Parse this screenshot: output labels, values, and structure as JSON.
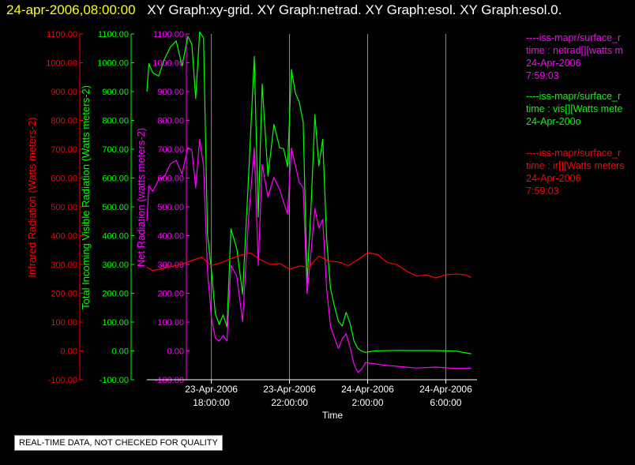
{
  "header": {
    "timestamp": "24-apr-2006,08:00:00",
    "titles": "XY Graph:xy-grid.  XY Graph:netrad.  XY Graph:esol.  XY Graph:esol.0."
  },
  "legend": [
    {
      "color": "#ff00ff",
      "lines": [
        "----iss-mapr/surface_r",
        "time : netrad[][watts m",
        "24-Apr-2006",
        "7:59:03"
      ]
    },
    {
      "color": "#00ff00",
      "lines": [
        "----iss-mapr/surface_r",
        "time : vis[][Watts mete",
        "24-Apr-200o"
      ]
    },
    {
      "color": "#ff0000",
      "lines": [
        "----iss-mapr/surface_r",
        "time : ir[][Watts meters",
        "24-Apr-2006",
        "7:59:03"
      ]
    }
  ],
  "disclaimer": "REAL-TIME DATA, NOT CHECKED FOR QUALITY",
  "chart_data": {
    "type": "line",
    "xlabel": "Time",
    "x_ticks": [
      "23-Apr-2006\n18:00:00",
      "23-Apr-2006\n22:00:00",
      "24-Apr-2006\n2:00:00",
      "24-Apr-2006\n6:00:00"
    ],
    "x_tick_hours": [
      18,
      22,
      26,
      30
    ],
    "xlim_hours": [
      14.7,
      31.6
    ],
    "grid_vertical": true,
    "y_axes": [
      {
        "label": "Infrared Radiation (Watts meters-2)",
        "color": "#ff0000",
        "ylim": [
          -100,
          1100
        ],
        "ticks": [
          "-100.00",
          "0.00",
          "100.00",
          "200.00",
          "300.00",
          "400.00",
          "500.00",
          "600.00",
          "700.00",
          "800.00",
          "900.00",
          "1000.00",
          "1100.00"
        ]
      },
      {
        "label": "Total Incoming Visible Radiation (Watts meters-2)",
        "color": "#00ff00",
        "ylim": [
          -100,
          1100
        ],
        "ticks": [
          "-100.00",
          "0.00",
          "100.00",
          "200.00",
          "300.00",
          "400.00",
          "500.00",
          "600.00",
          "700.00",
          "800.00",
          "900.00",
          "1000.00",
          "1100.00"
        ]
      },
      {
        "label": "Net Radiation (watts meters-2)",
        "color": "#ff00ff",
        "ylim": [
          -100,
          1100
        ],
        "ticks": [
          "-100.00",
          "0.00",
          "100.00",
          "200.00",
          "300.00",
          "400.00",
          "500.00",
          "600.00",
          "700.00",
          "800.00",
          "900.00",
          "1000.00",
          "1100.00"
        ]
      }
    ],
    "series": [
      {
        "color": "#00ff00",
        "x": [
          14.7,
          14.8,
          15.0,
          15.3,
          15.6,
          15.9,
          16.2,
          16.5,
          16.8,
          17.0,
          17.2,
          17.4,
          17.6,
          17.8,
          18.0,
          18.2,
          18.4,
          18.6,
          18.8,
          19.0,
          19.3,
          19.6,
          19.9,
          20.2,
          20.4,
          20.6,
          20.9,
          21.2,
          21.5,
          21.7,
          21.9,
          22.1,
          22.3,
          22.5,
          22.7,
          22.9,
          23.1,
          23.3,
          23.5,
          23.7,
          23.9,
          24.1,
          24.3,
          24.5,
          24.7,
          24.9,
          25.1,
          25.3,
          25.5,
          25.7,
          25.9,
          26.1,
          26.4,
          26.8,
          27.5,
          28.5,
          29.5,
          30.5,
          31.3
        ],
        "y": [
          900,
          1000,
          970,
          960,
          1020,
          1060,
          1080,
          990,
          1090,
          1060,
          870,
          1100,
          1080,
          400,
          280,
          130,
          95,
          130,
          90,
          430,
          360,
          200,
          600,
          1020,
          460,
          920,
          600,
          780,
          700,
          700,
          640,
          980,
          900,
          870,
          800,
          240,
          500,
          820,
          640,
          730,
          380,
          210,
          150,
          100,
          85,
          135,
          100,
          40,
          15,
          5,
          0,
          0,
          0,
          -2,
          -3,
          -5,
          -5,
          -6,
          -10
        ]
      },
      {
        "color": "#ff00ff",
        "x": [
          14.7,
          14.8,
          15.0,
          15.3,
          15.6,
          15.9,
          16.2,
          16.5,
          16.8,
          17.0,
          17.2,
          17.4,
          17.6,
          17.8,
          18.0,
          18.2,
          18.4,
          18.6,
          18.8,
          19.0,
          19.3,
          19.6,
          19.9,
          20.2,
          20.4,
          20.6,
          20.9,
          21.2,
          21.5,
          21.7,
          21.9,
          22.1,
          22.3,
          22.5,
          22.7,
          22.9,
          23.1,
          23.3,
          23.5,
          23.7,
          23.9,
          24.1,
          24.3,
          24.5,
          24.7,
          24.9,
          25.1,
          25.3,
          25.5,
          25.7,
          25.9,
          26.1,
          26.4,
          26.8,
          27.5,
          28.5,
          29.5,
          30.5,
          31.3
        ],
        "y": [
          450,
          580,
          560,
          600,
          610,
          650,
          660,
          610,
          700,
          690,
          560,
          730,
          640,
          280,
          120,
          50,
          40,
          60,
          40,
          300,
          260,
          100,
          450,
          700,
          290,
          640,
          530,
          600,
          560,
          520,
          480,
          710,
          650,
          590,
          570,
          200,
          340,
          490,
          420,
          450,
          210,
          80,
          45,
          10,
          45,
          65,
          20,
          -40,
          -70,
          -60,
          -40,
          -45,
          -50,
          -55,
          -60,
          -65,
          -60,
          -62,
          -60
        ]
      },
      {
        "color": "#ff0000",
        "x": [
          14.7,
          15.0,
          15.5,
          16.0,
          16.5,
          17.0,
          17.5,
          18.0,
          18.5,
          19.0,
          19.5,
          20.0,
          20.5,
          21.0,
          21.5,
          22.0,
          22.5,
          23.0,
          23.5,
          24.0,
          24.5,
          25.0,
          25.5,
          26.0,
          26.5,
          27.0,
          27.5,
          28.0,
          28.5,
          29.0,
          29.5,
          30.0,
          30.5,
          31.0,
          31.3
        ],
        "y": [
          290,
          285,
          290,
          295,
          300,
          310,
          320,
          290,
          300,
          315,
          330,
          340,
          320,
          305,
          310,
          290,
          300,
          295,
          330,
          310,
          305,
          290,
          310,
          335,
          330,
          305,
          300,
          280,
          265,
          270,
          260,
          270,
          270,
          265,
          255
        ]
      }
    ]
  }
}
